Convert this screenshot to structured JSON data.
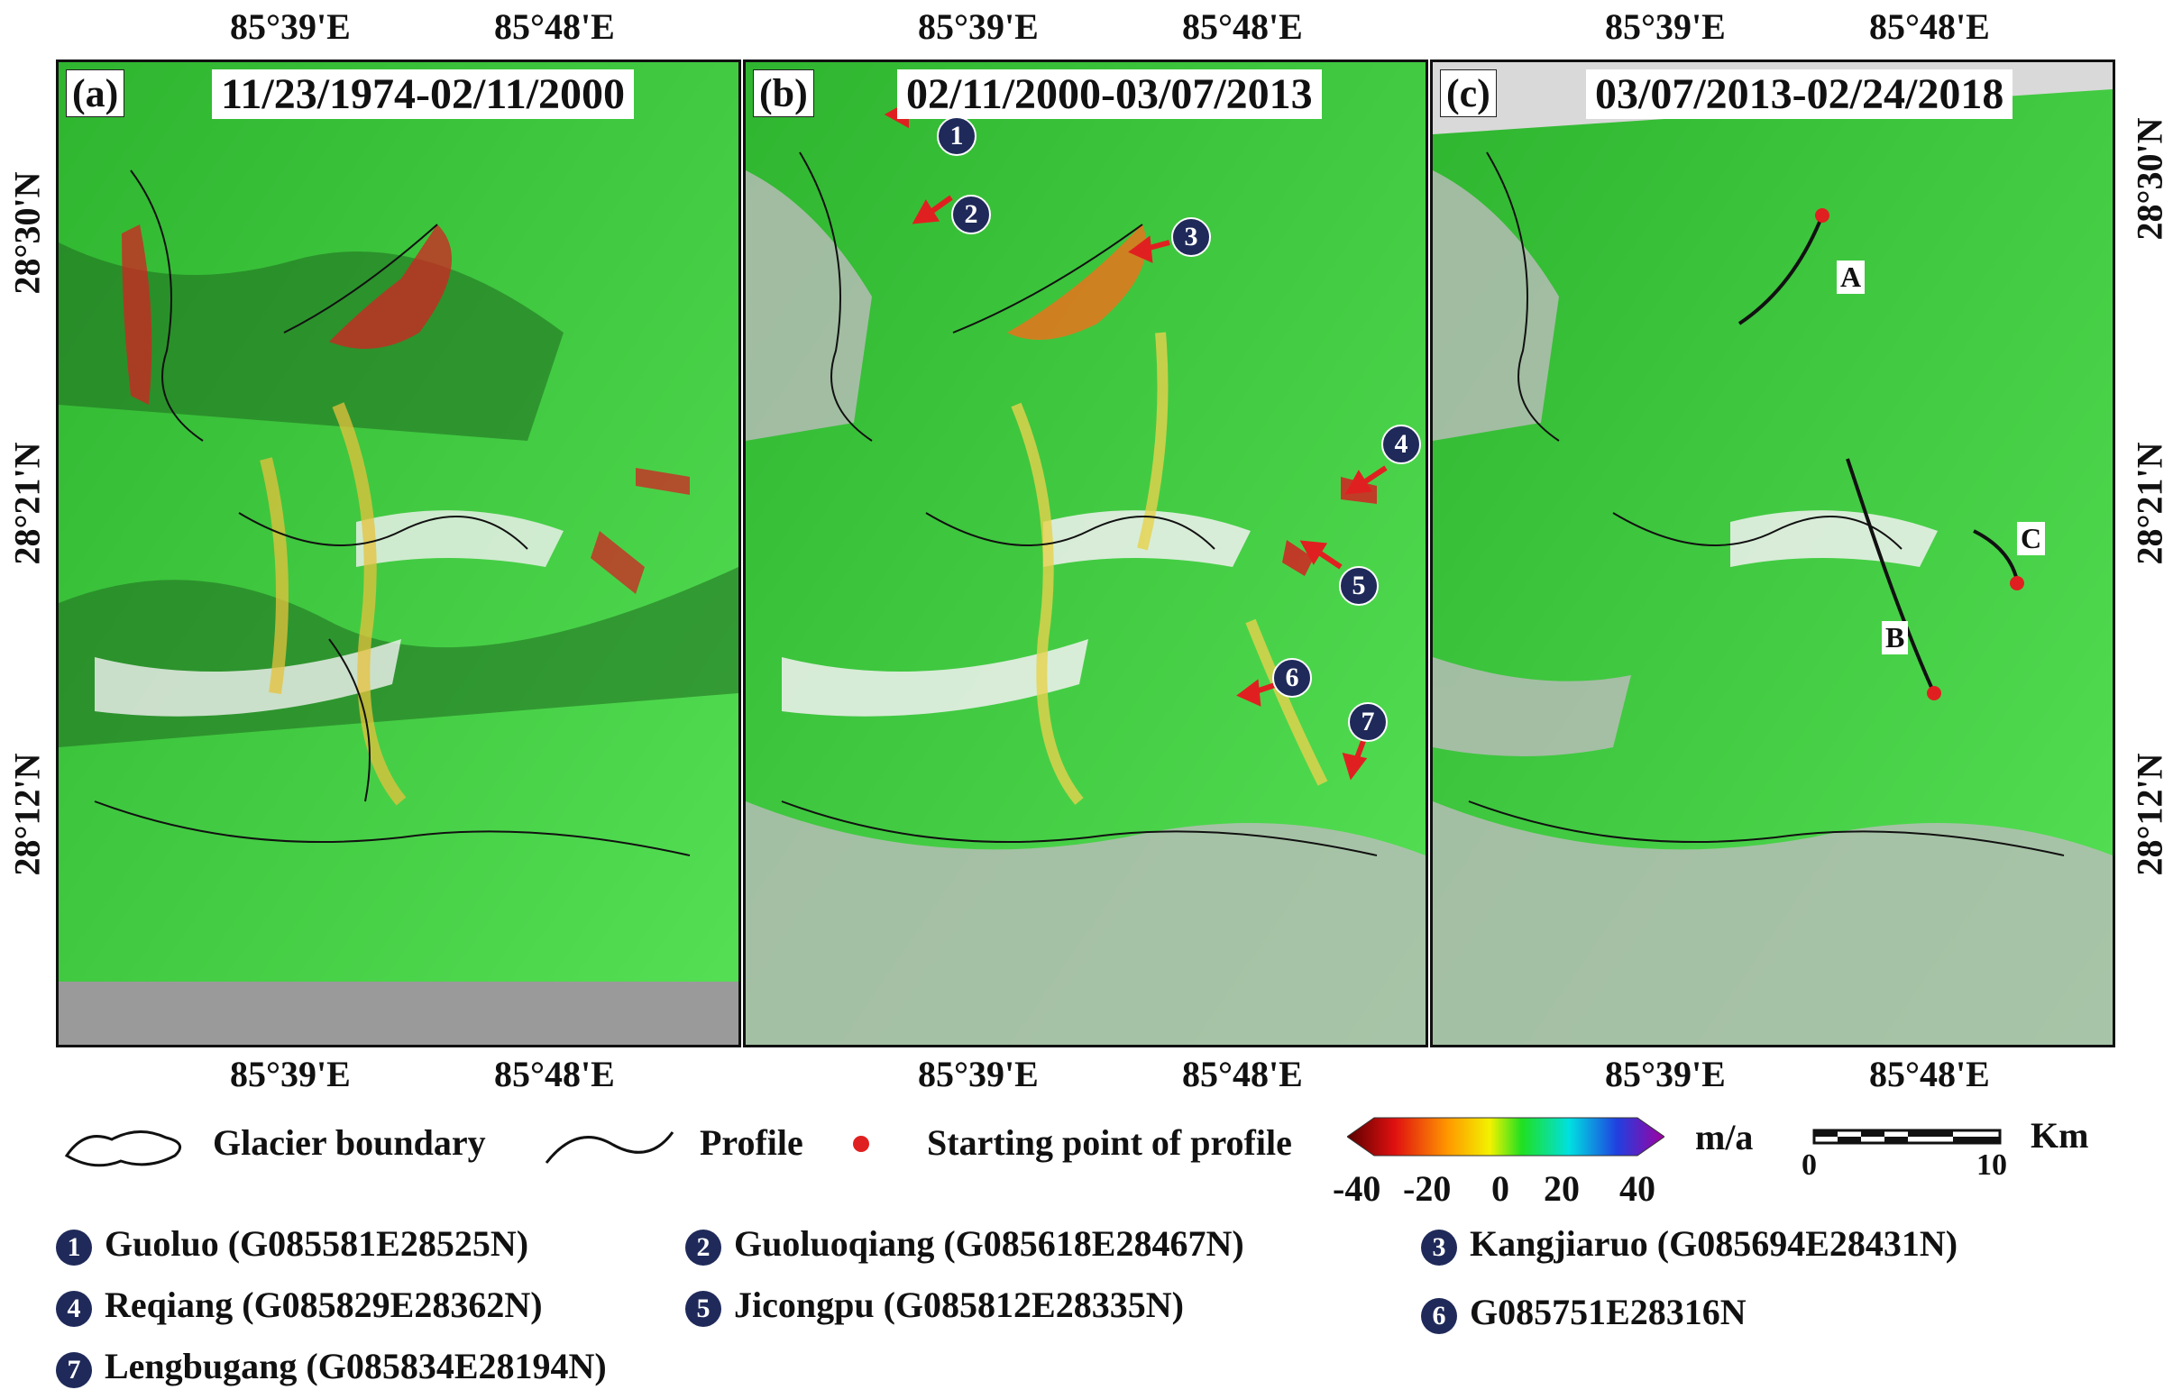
{
  "axes": {
    "lon_labels": [
      "85°39'E",
      "85°48'E"
    ],
    "lat_labels": [
      "28°30'N",
      "28°21'N",
      "28°12'N"
    ]
  },
  "panels": [
    {
      "label": "(a)",
      "date": "11/23/1974-02/11/2000"
    },
    {
      "label": "(b)",
      "date": "02/11/2000-03/07/2013"
    },
    {
      "label": "(c)",
      "date": "03/07/2013-02/24/2018"
    }
  ],
  "panel_b_markers": [
    "1",
    "2",
    "3",
    "4",
    "5",
    "6",
    "7"
  ],
  "panel_c_profiles": [
    "A",
    "B",
    "C"
  ],
  "legend": {
    "glacier_boundary": "Glacier boundary",
    "profile": "Profile",
    "starting_point": "Starting point of profile",
    "unit": "m/a",
    "color_ticks": [
      "-40",
      "-20",
      "0",
      "20",
      "40"
    ],
    "scale_ticks": [
      "0",
      "10"
    ],
    "scale_unit": "Km"
  },
  "glaciers": [
    {
      "num": "1",
      "name": "Guoluo (G085581E28525N)"
    },
    {
      "num": "2",
      "name": "Guoluoqiang (G085618E28467N)"
    },
    {
      "num": "3",
      "name": "Kangjiaruo (G085694E28431N)"
    },
    {
      "num": "4",
      "name": "Reqiang (G085829E28362N)"
    },
    {
      "num": "5",
      "name": "Jicongpu (G085812E28335N)"
    },
    {
      "num": "6",
      "name": "G085751E28316N"
    },
    {
      "num": "7",
      "name": "Lengbugang (G085834E28194N)"
    }
  ],
  "colors": {
    "map_green": "#3fcf3f",
    "marker": "#1f2a5a",
    "arrow": "#e02020",
    "start_point": "#e02020"
  }
}
